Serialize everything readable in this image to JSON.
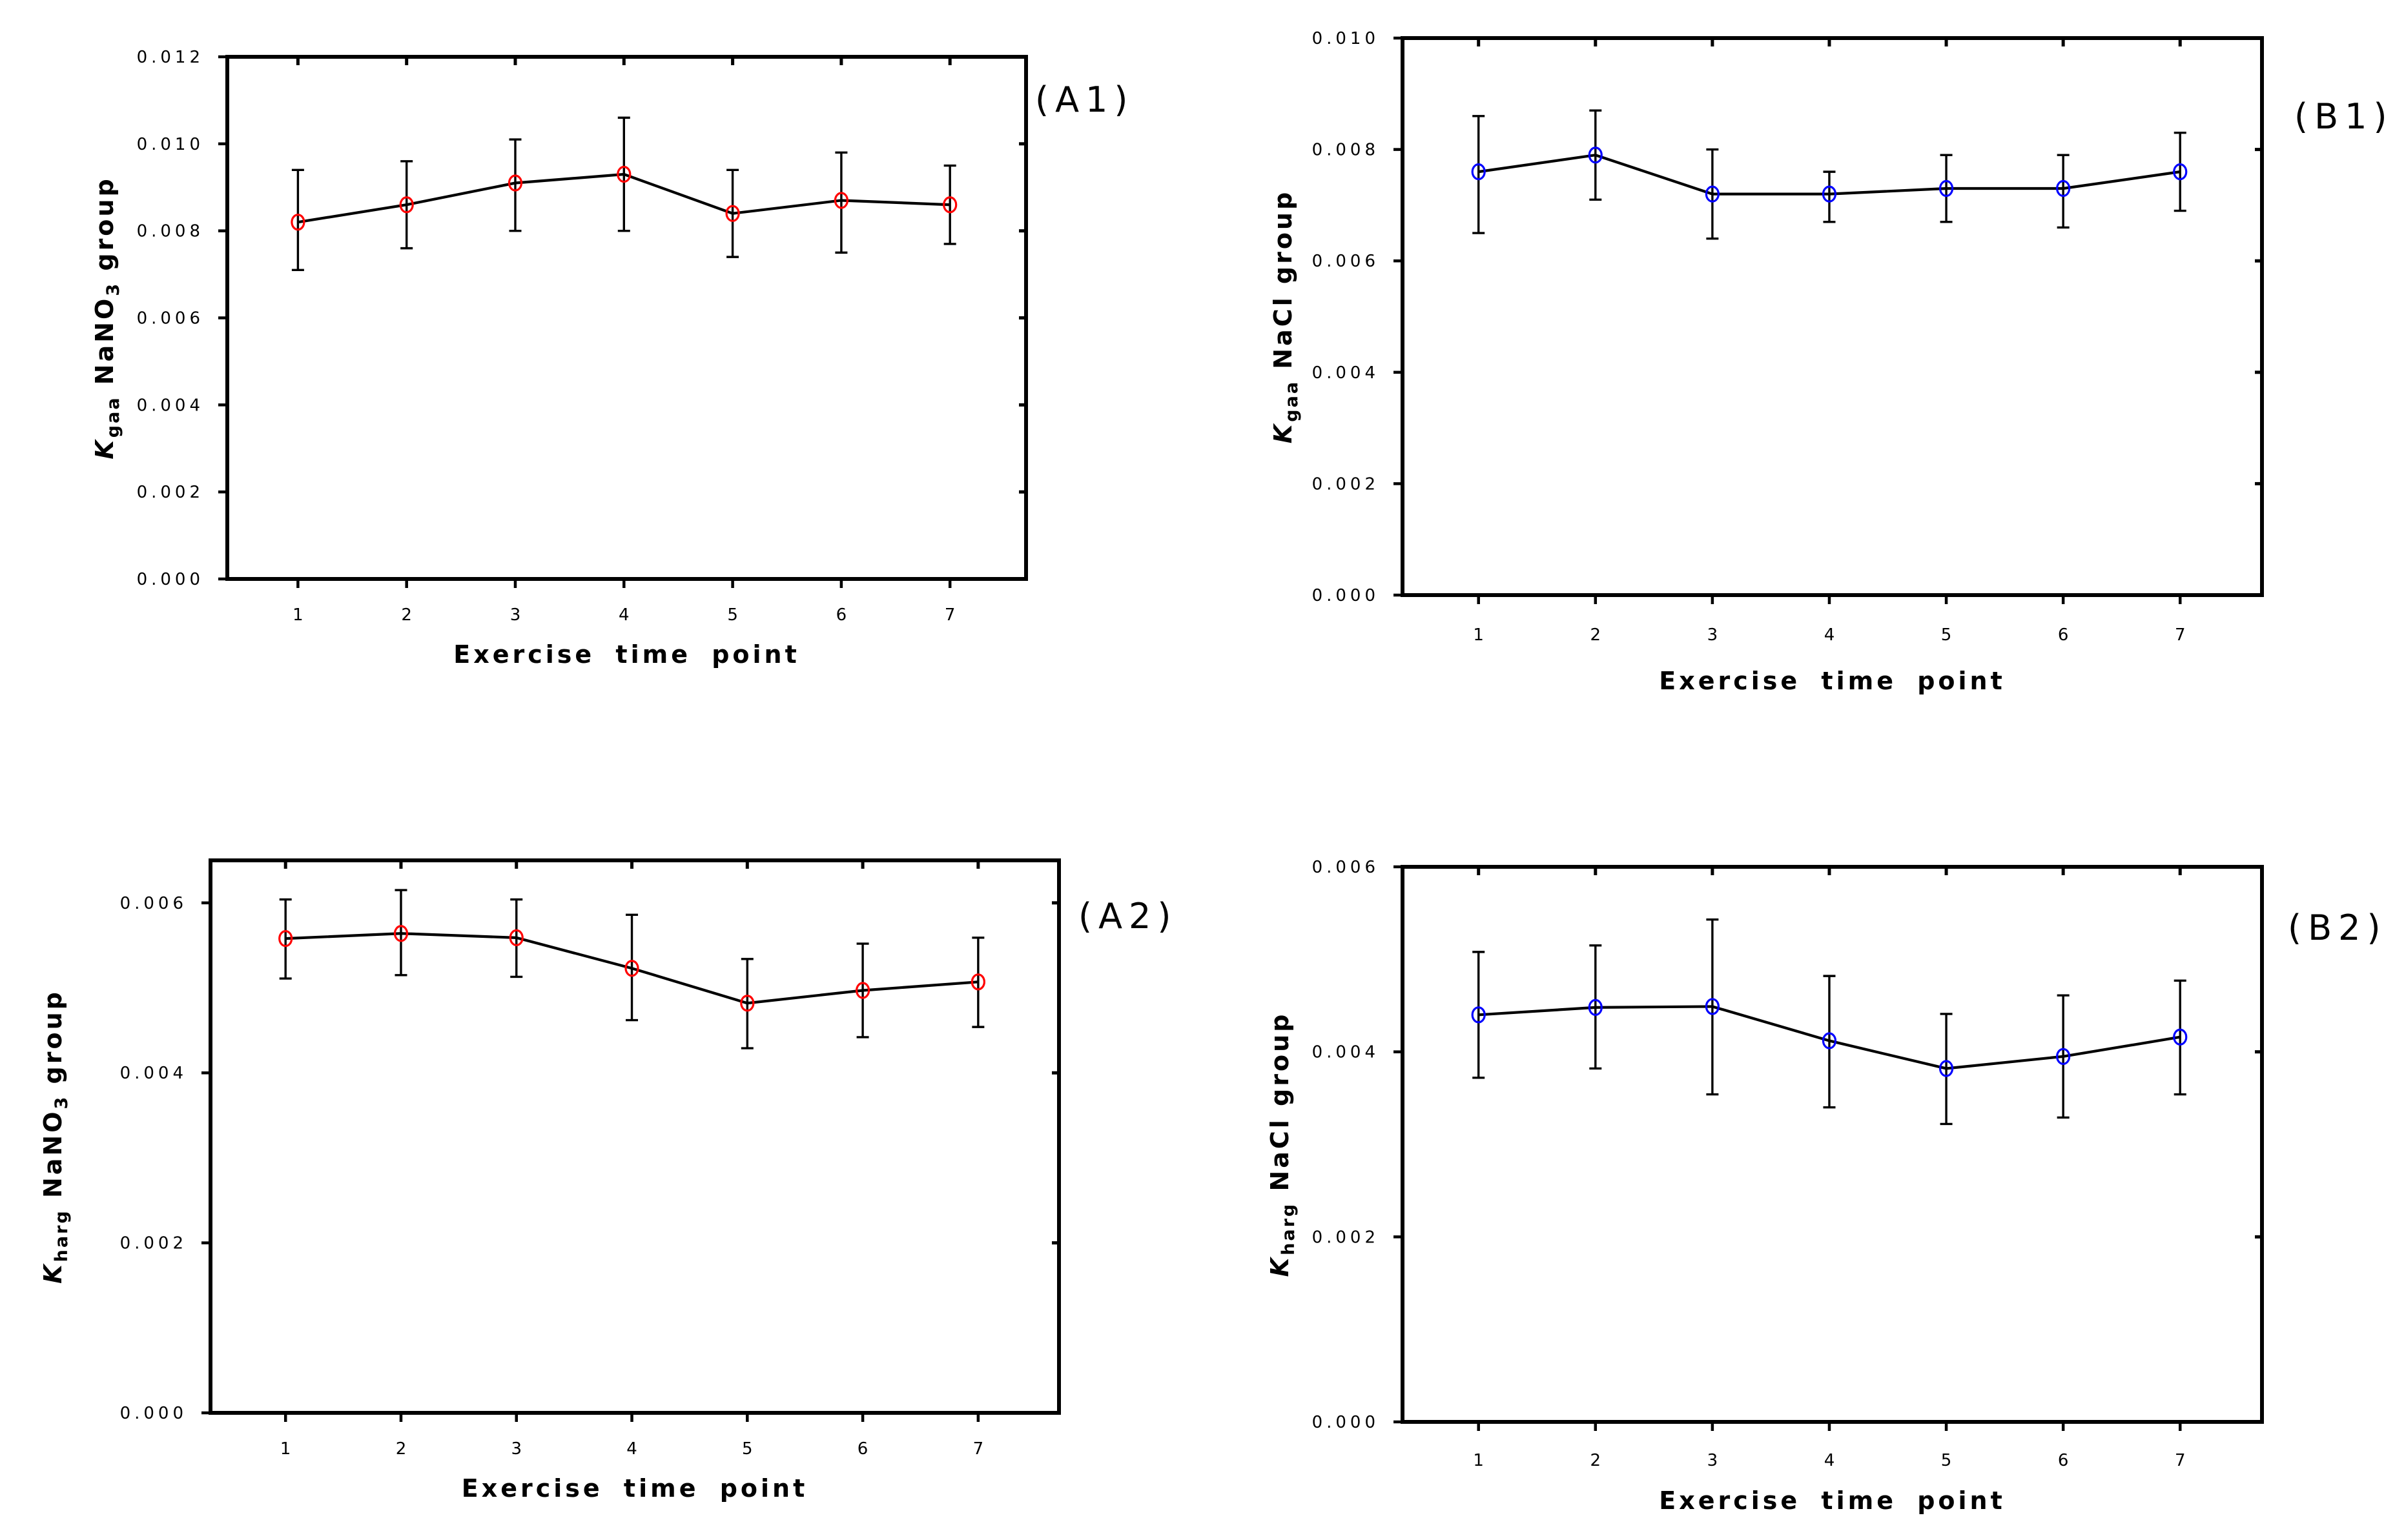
{
  "figure_background": "#ffffff",
  "chart_data": [
    {
      "id": "A1",
      "type": "line",
      "corner_label": "(A1)",
      "xlabel": "Exercise time point",
      "ylabel_text": "K gaa NaNO3 group",
      "ylabel_parts": [
        {
          "text": "K",
          "style": "italic-bold"
        },
        {
          "text": "gaa",
          "style": "sub"
        },
        {
          "text": " NaNO",
          "style": "bold"
        },
        {
          "text": "3",
          "style": "sub"
        },
        {
          "text": " group",
          "style": "bold"
        }
      ],
      "marker_color": "#ff0000",
      "line_color": "#000000",
      "x": [
        1,
        2,
        3,
        4,
        5,
        6,
        7
      ],
      "values": [
        0.0082,
        0.0086,
        0.0091,
        0.0093,
        0.0084,
        0.0087,
        0.0086
      ],
      "upper": [
        0.0094,
        0.0096,
        0.0101,
        0.0106,
        0.0094,
        0.0098,
        0.0095
      ],
      "lower": [
        0.0071,
        0.0076,
        0.008,
        0.008,
        0.0074,
        0.0075,
        0.0077
      ],
      "ylim": [
        0,
        0.012
      ],
      "yticks": [
        "0.000",
        "0.002",
        "0.004",
        "0.006",
        "0.008",
        "0.010",
        "0.012"
      ],
      "xlim": [
        0.35,
        7.7
      ],
      "xticks": [
        "1",
        "2",
        "3",
        "4",
        "5",
        "6",
        "7"
      ],
      "grid": false
    },
    {
      "id": "B1",
      "type": "line",
      "corner_label": "(B1)",
      "xlabel": "Exercise time point",
      "ylabel_text": "K gaa NaCl group",
      "ylabel_parts": [
        {
          "text": "K",
          "style": "italic-bold"
        },
        {
          "text": "gaa",
          "style": "sub"
        },
        {
          "text": " NaCl group",
          "style": "bold"
        }
      ],
      "marker_color": "#0000ff",
      "line_color": "#000000",
      "x": [
        1,
        2,
        3,
        4,
        5,
        6,
        7
      ],
      "values": [
        0.0076,
        0.0079,
        0.0072,
        0.0072,
        0.0073,
        0.0073,
        0.0076
      ],
      "upper": [
        0.0086,
        0.0087,
        0.008,
        0.0076,
        0.0079,
        0.0079,
        0.0083
      ],
      "lower": [
        0.0065,
        0.0071,
        0.0064,
        0.0067,
        0.0067,
        0.0066,
        0.0069
      ],
      "ylim": [
        0,
        0.01
      ],
      "yticks": [
        "0.000",
        "0.002",
        "0.004",
        "0.006",
        "0.008",
        "0.010"
      ],
      "xlim": [
        0.35,
        7.7
      ],
      "xticks": [
        "1",
        "2",
        "3",
        "4",
        "5",
        "6",
        "7"
      ],
      "grid": false
    },
    {
      "id": "A2",
      "type": "line",
      "corner_label": "(A2)",
      "xlabel": "Exercise time point",
      "ylabel_text": "K harg NaNO3 group",
      "ylabel_parts": [
        {
          "text": "K",
          "style": "italic-bold"
        },
        {
          "text": "harg",
          "style": "sub"
        },
        {
          "text": " NaNO",
          "style": "bold"
        },
        {
          "text": "3",
          "style": "sub"
        },
        {
          "text": " group",
          "style": "bold"
        }
      ],
      "marker_color": "#ff0000",
      "line_color": "#000000",
      "x": [
        1,
        2,
        3,
        4,
        5,
        6,
        7
      ],
      "values": [
        0.00558,
        0.00564,
        0.00559,
        0.00523,
        0.00482,
        0.00497,
        0.00507
      ],
      "upper": [
        0.00604,
        0.00615,
        0.00604,
        0.00586,
        0.00534,
        0.00552,
        0.00559
      ],
      "lower": [
        0.00511,
        0.00515,
        0.00513,
        0.00462,
        0.00429,
        0.00442,
        0.00454
      ],
      "ylim": [
        0,
        0.0065
      ],
      "yticks": [
        "0.000",
        "0.002",
        "0.004",
        "0.006"
      ],
      "xlim": [
        0.35,
        7.7
      ],
      "xticks": [
        "1",
        "2",
        "3",
        "4",
        "5",
        "6",
        "7"
      ],
      "grid": false
    },
    {
      "id": "B2",
      "type": "line",
      "corner_label": "(B2)",
      "xlabel": "Exercise time point",
      "ylabel_text": "K harg NaCl group",
      "ylabel_parts": [
        {
          "text": "K",
          "style": "italic-bold"
        },
        {
          "text": "harg",
          "style": "sub"
        },
        {
          "text": " NaCl group",
          "style": "bold"
        }
      ],
      "marker_color": "#0000ff",
      "line_color": "#000000",
      "x": [
        1,
        2,
        3,
        4,
        5,
        6,
        7
      ],
      "values": [
        0.0044,
        0.00448,
        0.00449,
        0.00412,
        0.00382,
        0.00395,
        0.00416
      ],
      "upper": [
        0.00508,
        0.00515,
        0.00543,
        0.00482,
        0.00441,
        0.00461,
        0.00477
      ],
      "lower": [
        0.00372,
        0.00382,
        0.00354,
        0.0034,
        0.00322,
        0.00329,
        0.00354
      ],
      "ylim": [
        0,
        0.006
      ],
      "yticks": [
        "0.000",
        "0.002",
        "0.004",
        "0.006"
      ],
      "xlim": [
        0.35,
        7.7
      ],
      "xticks": [
        "1",
        "2",
        "3",
        "4",
        "5",
        "6",
        "7"
      ],
      "grid": false
    }
  ]
}
